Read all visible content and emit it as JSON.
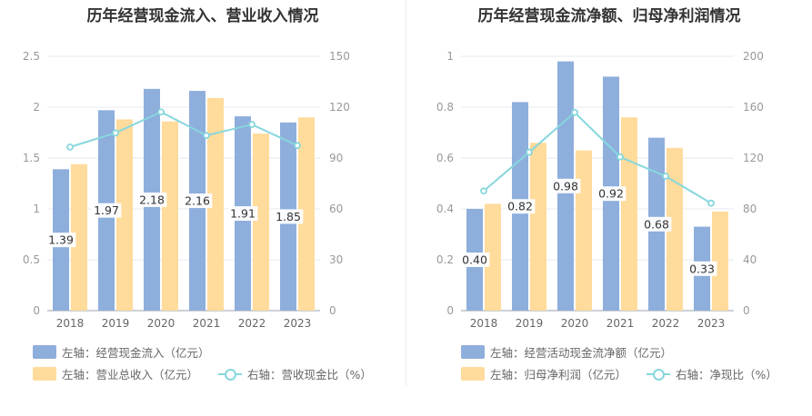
{
  "colors": {
    "bar_primary": "#8eaedc",
    "bar_secondary": "#ffdb9c",
    "line": "#87d7de",
    "grid": "#e6e8f0",
    "axis_text": "#999999"
  },
  "chart_data": [
    {
      "type": "bar",
      "title": "历年经营现金流入、营业收入情况",
      "categories": [
        "2018",
        "2019",
        "2020",
        "2021",
        "2022",
        "2023"
      ],
      "left_axis": {
        "ylim": [
          0,
          2.5
        ],
        "ticks": [
          "0",
          "0.5",
          "1",
          "1.5",
          "2",
          "2.5"
        ]
      },
      "right_axis": {
        "ylim": [
          0,
          150
        ],
        "ticks": [
          "0",
          "30",
          "60",
          "90",
          "120",
          "150"
        ]
      },
      "series": [
        {
          "name": "左轴：经营现金流入（亿元）",
          "axis": "left",
          "type": "bar",
          "values": [
            1.39,
            1.97,
            2.18,
            2.16,
            1.91,
            1.85
          ],
          "labels": [
            "1.39",
            "1.97",
            "2.18",
            "2.16",
            "1.91",
            "1.85"
          ]
        },
        {
          "name": "左轴：营业总收入（亿元）",
          "axis": "left",
          "type": "bar",
          "values": [
            1.44,
            1.88,
            1.86,
            2.09,
            1.74,
            1.9
          ]
        },
        {
          "name": "右轴：营收现金比（%）",
          "axis": "right",
          "type": "line",
          "values": [
            96.5,
            104.8,
            117.2,
            103.3,
            109.8,
            97.4
          ]
        }
      ]
    },
    {
      "type": "bar",
      "title": "历年经营现金流净额、归母净利润情况",
      "categories": [
        "2018",
        "2019",
        "2020",
        "2021",
        "2022",
        "2023"
      ],
      "left_axis": {
        "ylim": [
          0,
          1
        ],
        "ticks": [
          "0",
          "0.2",
          "0.4",
          "0.6",
          "0.8",
          "1"
        ]
      },
      "right_axis": {
        "ylim": [
          0,
          200
        ],
        "ticks": [
          "0",
          "40",
          "80",
          "120",
          "160",
          "200"
        ]
      },
      "series": [
        {
          "name": "左轴：经营活动现金流净额（亿元）",
          "axis": "left",
          "type": "bar",
          "values": [
            0.4,
            0.82,
            0.98,
            0.92,
            0.68,
            0.33
          ],
          "labels": [
            "0.40",
            "0.82",
            "0.98",
            "0.92",
            "0.68",
            "0.33"
          ]
        },
        {
          "name": "左轴：归母净利润（亿元）",
          "axis": "left",
          "type": "bar",
          "values": [
            0.42,
            0.66,
            0.63,
            0.76,
            0.64,
            0.39
          ]
        },
        {
          "name": "右轴：净现比（%）",
          "axis": "right",
          "type": "line",
          "values": [
            94.1,
            124.6,
            155.9,
            120.9,
            105.7,
            84.5
          ]
        }
      ]
    }
  ]
}
